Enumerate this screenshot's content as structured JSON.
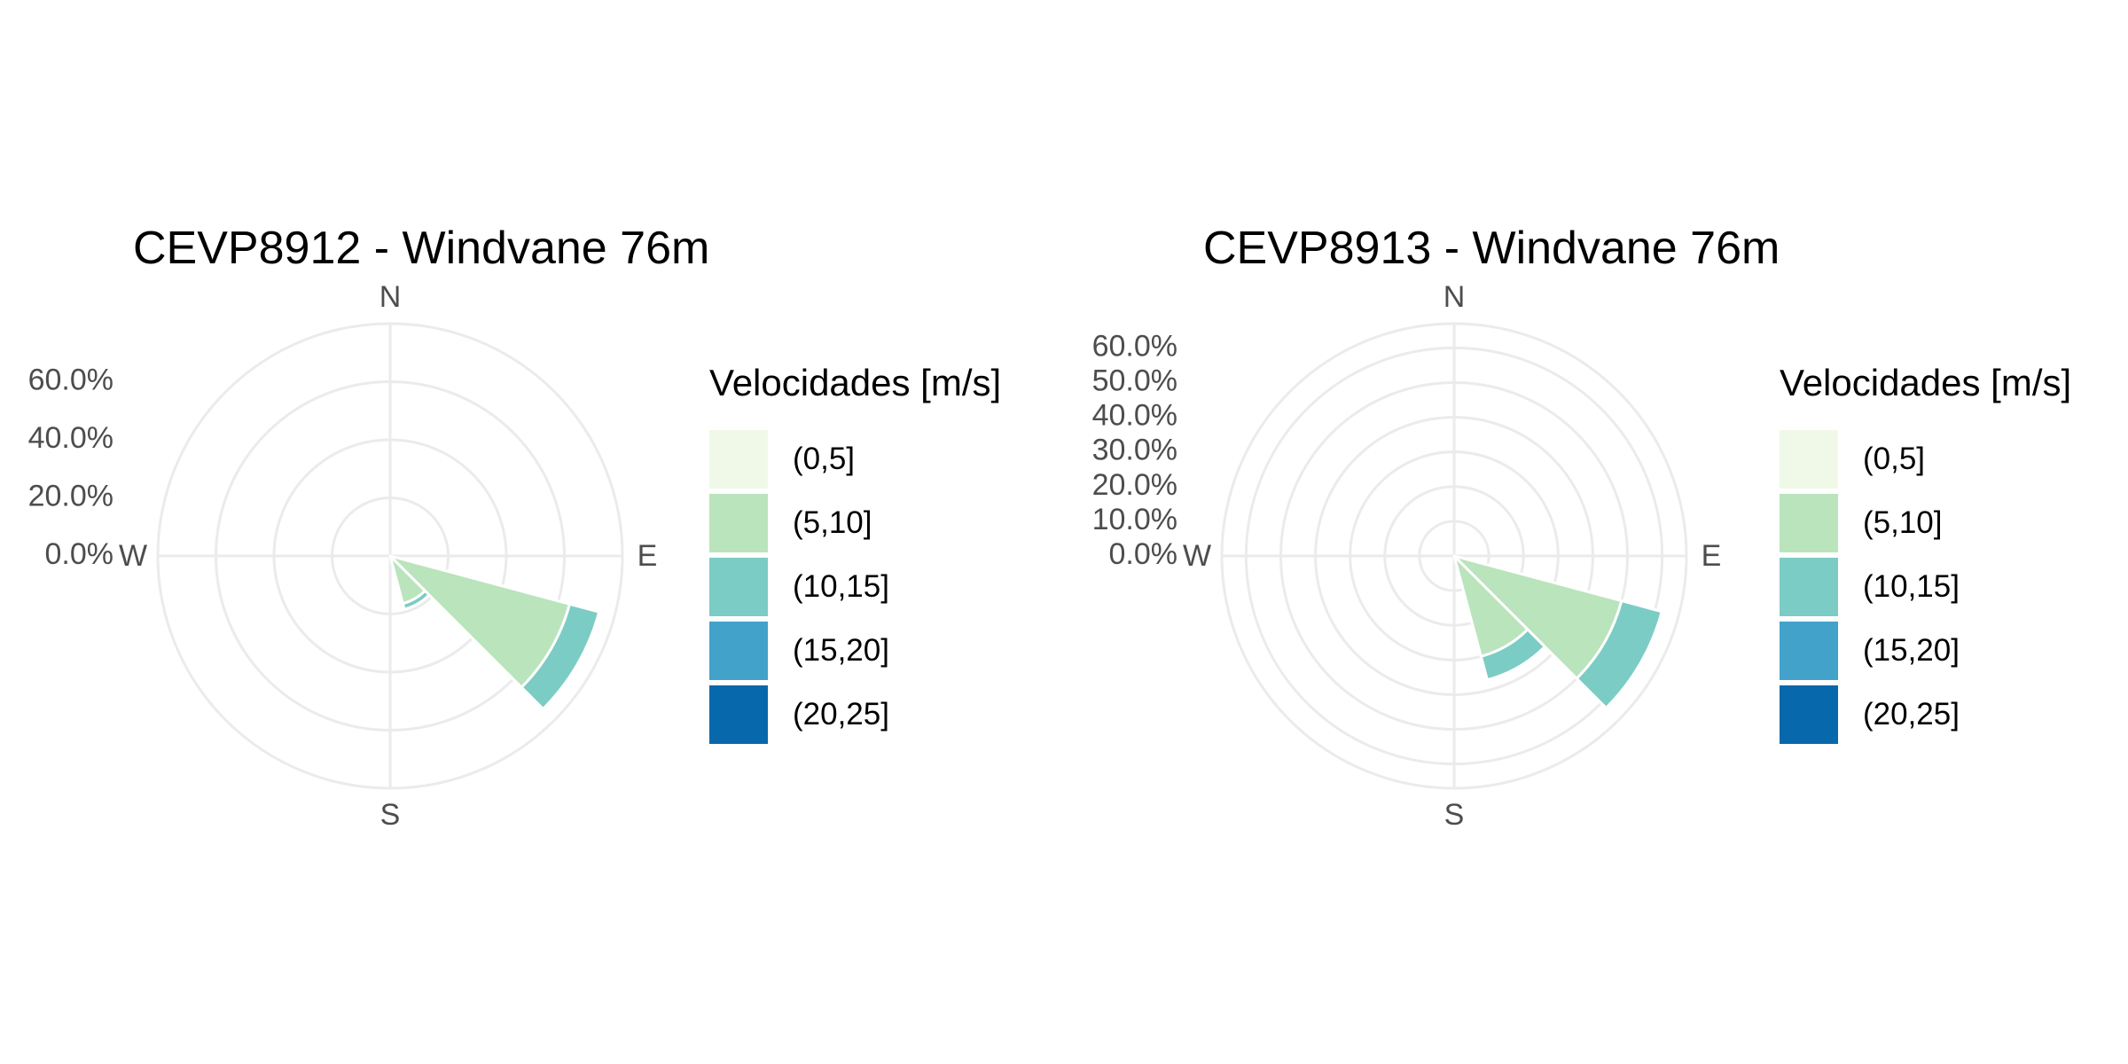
{
  "legend": {
    "title": "Velocidades [m/s]",
    "bins": [
      {
        "label": "(0,5]",
        "color": "#F0F9E8"
      },
      {
        "label": "(5,10]",
        "color": "#BAE4BC"
      },
      {
        "label": "(10,15]",
        "color": "#7BCCC4"
      },
      {
        "label": "(15,20]",
        "color": "#43A2CA"
      },
      {
        "label": "(20,25]",
        "color": "#0868AC"
      }
    ]
  },
  "directions": [
    "N",
    "E",
    "S",
    "W"
  ],
  "colors": {
    "grid": "#EBEBEB",
    "axis_text": "#4D4D4D",
    "bar_outline": "#FFFFFF"
  },
  "chart_data": [
    {
      "type": "bar",
      "coord": "polar",
      "title": "CEVP8912 - Windvane 76m",
      "y_ticks": [
        "0.0%",
        "20.0%",
        "40.0%",
        "60.0%"
      ],
      "y_tick_values": [
        0,
        20,
        40,
        60
      ],
      "r_max": 80,
      "grid": true,
      "legend_position": "right",
      "sectors": [
        {
          "direction_deg": 120,
          "width_deg": 30,
          "stack": [
            {
              "bin": "(0,5]",
              "value": 0.5
            },
            {
              "bin": "(5,10]",
              "value": 63.5
            },
            {
              "bin": "(10,15]",
              "value": 10.5
            }
          ]
        },
        {
          "direction_deg": 150,
          "width_deg": 30,
          "stack": [
            {
              "bin": "(0,5]",
              "value": 0.5
            },
            {
              "bin": "(5,10]",
              "value": 16.5
            },
            {
              "bin": "(10,15]",
              "value": 2.0
            }
          ]
        }
      ]
    },
    {
      "type": "bar",
      "coord": "polar",
      "title": "CEVP8913 - Windvane 76m",
      "y_ticks": [
        "0.0%",
        "10.0%",
        "20.0%",
        "30.0%",
        "40.0%",
        "50.0%",
        "60.0%"
      ],
      "y_tick_values": [
        0,
        10,
        20,
        30,
        40,
        50,
        60
      ],
      "r_max": 67,
      "grid": true,
      "legend_position": "right",
      "sectors": [
        {
          "direction_deg": 120,
          "width_deg": 30,
          "stack": [
            {
              "bin": "(0,5]",
              "value": 0.5
            },
            {
              "bin": "(5,10]",
              "value": 49.5
            },
            {
              "bin": "(10,15]",
              "value": 12.0
            }
          ]
        },
        {
          "direction_deg": 150,
          "width_deg": 30,
          "stack": [
            {
              "bin": "(0,5]",
              "value": 0.5
            },
            {
              "bin": "(5,10]",
              "value": 29.5
            },
            {
              "bin": "(10,15]",
              "value": 7.0
            }
          ]
        }
      ]
    }
  ]
}
